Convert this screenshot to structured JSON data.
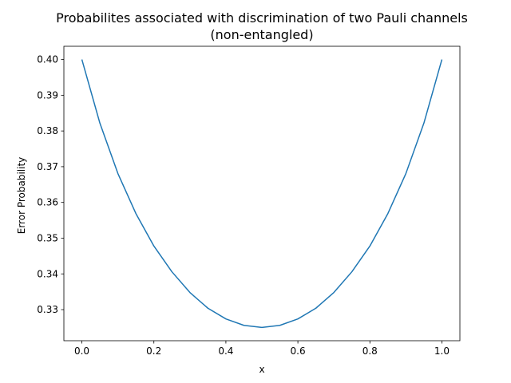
{
  "chart_data": {
    "type": "line",
    "title": "Probabilites associated with discrimination of two Pauli channels",
    "subtitle": "(non-entangled)",
    "xlabel": "x",
    "ylabel": "Error Probability",
    "xlim": [
      -0.05,
      1.05
    ],
    "ylim": [
      0.3213,
      0.4037
    ],
    "x_ticks": [
      0.0,
      0.2,
      0.4,
      0.6,
      0.8,
      1.0
    ],
    "x_tick_labels": [
      "0.0",
      "0.2",
      "0.4",
      "0.6",
      "0.8",
      "1.0"
    ],
    "y_ticks": [
      0.33,
      0.34,
      0.35,
      0.36,
      0.37,
      0.38,
      0.39,
      0.4
    ],
    "y_tick_labels": [
      "0.33",
      "0.34",
      "0.35",
      "0.36",
      "0.37",
      "0.38",
      "0.39",
      "0.40"
    ],
    "grid": false,
    "legend": "none",
    "series": [
      {
        "color": "#1f77b4",
        "x": [
          0.0,
          0.05,
          0.1,
          0.15,
          0.2,
          0.25,
          0.3,
          0.35,
          0.4,
          0.45,
          0.5,
          0.55,
          0.6,
          0.65,
          0.7,
          0.75,
          0.8,
          0.85,
          0.9,
          0.95,
          1.0
        ],
        "values": [
          0.4,
          0.3822,
          0.3681,
          0.3569,
          0.3478,
          0.3406,
          0.3348,
          0.3304,
          0.3274,
          0.3256,
          0.325,
          0.3256,
          0.3274,
          0.3304,
          0.3348,
          0.3406,
          0.3478,
          0.3569,
          0.3681,
          0.3822,
          0.4
        ]
      }
    ]
  }
}
